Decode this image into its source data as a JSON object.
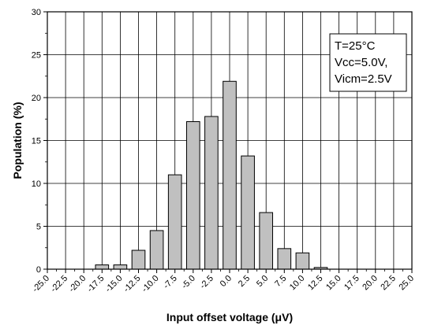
{
  "chart_data": {
    "type": "bar",
    "xlabel": "Input offset voltage (μV)",
    "ylabel": "Population (%)",
    "xlim": [
      -25.0,
      25.0
    ],
    "ylim": [
      0,
      30
    ],
    "x_ticks": [
      "-25.0",
      "-22.5",
      "-20.0",
      "-17.5",
      "-15.0",
      "-12.5",
      "-10.0",
      "-7.5",
      "-5.0",
      "-2.5",
      "0.0",
      "2.5",
      "5.0",
      "7.5",
      "10.0",
      "12.5",
      "15.0",
      "17.5",
      "20.0",
      "22.5",
      "25.0"
    ],
    "y_ticks": [
      "0",
      "5",
      "10",
      "15",
      "20",
      "25",
      "30"
    ],
    "bin_width": 2.5,
    "x": [
      -17.5,
      -15.0,
      -12.5,
      -10.0,
      -7.5,
      -5.0,
      -2.5,
      0.0,
      2.5,
      5.0,
      7.5,
      10.0,
      12.5
    ],
    "values": [
      0.5,
      0.5,
      2.2,
      4.5,
      11.0,
      17.2,
      17.8,
      21.9,
      13.2,
      6.6,
      2.4,
      1.9,
      0.2
    ],
    "grid": true,
    "legend_placement": "top-right",
    "annotation": [
      "T=25°C",
      "Vcc=5.0V,",
      "Vicm=2.5V"
    ],
    "bar_fill": "#c0c0c0",
    "bar_stroke": "#000000"
  }
}
